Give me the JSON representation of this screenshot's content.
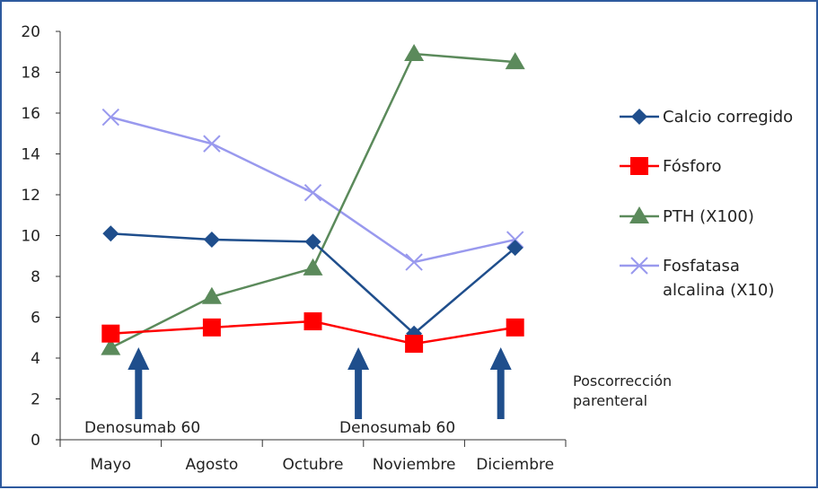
{
  "chart_data": {
    "type": "line",
    "categories": [
      "Mayo",
      "Agosto",
      "Octubre",
      "Noviembre",
      "Diciembre"
    ],
    "ylim": [
      0,
      20
    ],
    "yticks": [
      "0",
      "2",
      "4",
      "6",
      "8",
      "10",
      "12",
      "14",
      "16",
      "18",
      "20"
    ],
    "grid": false,
    "legend_position": "right",
    "series": [
      {
        "name": "Calcio corregido",
        "values": [
          10.1,
          9.8,
          9.7,
          5.2,
          9.4
        ],
        "color": "#1F4E8C",
        "marker": "diamond"
      },
      {
        "name": "Fósforo",
        "values": [
          5.2,
          5.5,
          5.8,
          4.7,
          5.5
        ],
        "color": "#FF0000",
        "marker": "square"
      },
      {
        "name": "PTH (X100)",
        "values": [
          4.5,
          7.0,
          8.4,
          18.9,
          18.5
        ],
        "color": "#5B8A5B",
        "marker": "triangle"
      },
      {
        "name": "Fosfatasa alcalina (X10)",
        "legend_lines": [
          "Fosfatasa",
          "alcalina (X10)"
        ],
        "values": [
          15.8,
          14.5,
          12.1,
          8.7,
          9.8
        ],
        "color": "#9999EE",
        "marker": "x"
      }
    ],
    "annotations": [
      {
        "label": "Denosumab 60",
        "category": "Mayo"
      },
      {
        "label": "Denosumab 60",
        "category": "Noviembre"
      },
      {
        "label_lines": [
          "Poscorrección",
          "parenteral"
        ],
        "category": "Diciembre"
      }
    ],
    "arrow_color": "#1F4E8C"
  }
}
